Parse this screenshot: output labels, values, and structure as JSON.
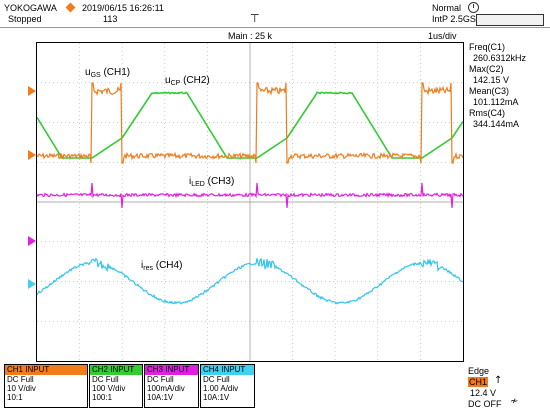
{
  "header": {
    "brand": "YOKOGAWA",
    "datetime": "2019/06/15 16:26:11",
    "state": "Stopped",
    "count": "113",
    "mode": "Normal",
    "sampling": "IntP  2.5GS/s",
    "main_label": "Main : 25 k",
    "timebase": "1us/div"
  },
  "measurements": [
    {
      "name": "Freq(C1)",
      "value": "260.6312kHz"
    },
    {
      "name": "Max(C2)",
      "value": "142.15 V"
    },
    {
      "name": "Mean(C3)",
      "value": "101.112mA"
    },
    {
      "name": "Rms(C4)",
      "value": "344.144mA"
    }
  ],
  "trace_labels": {
    "ch1": {
      "main": "u",
      "sub": "GS",
      "rest": " (CH1)"
    },
    "ch2": {
      "main": "u",
      "sub": "CP",
      "rest": " (CH2)"
    },
    "ch3": {
      "main": "i",
      "sub": "LED",
      "rest": " (CH3)"
    },
    "ch4": {
      "main": "i",
      "sub": "res",
      "rest": " (CH4)"
    }
  },
  "channels": [
    {
      "head": "CH1 INPUT",
      "coupling": "DC Full",
      "scale": "10 V/div",
      "probe": "10:1",
      "color": "#f07c1c"
    },
    {
      "head": "CH2 INPUT",
      "coupling": "DC Full",
      "scale": "100 V/div",
      "probe": "100:1",
      "color": "#33cc33"
    },
    {
      "head": "CH3 INPUT",
      "coupling": "DC Full",
      "scale": "100mA/div",
      "probe": "10A:1V",
      "color": "#e020e0"
    },
    {
      "head": "CH4 INPUT",
      "coupling": "DC Full",
      "scale": "1.00 A/div",
      "probe": "10A:1V",
      "color": "#40d0f0"
    }
  ],
  "trigger": {
    "mode": "Edge",
    "source": "CH1",
    "level": "12.4 V",
    "coupling": "DC OFF"
  },
  "colors": {
    "ch1": "#f07c1c",
    "ch2": "#33cc33",
    "ch3": "#e020e0",
    "ch4": "#33c4ee"
  }
}
